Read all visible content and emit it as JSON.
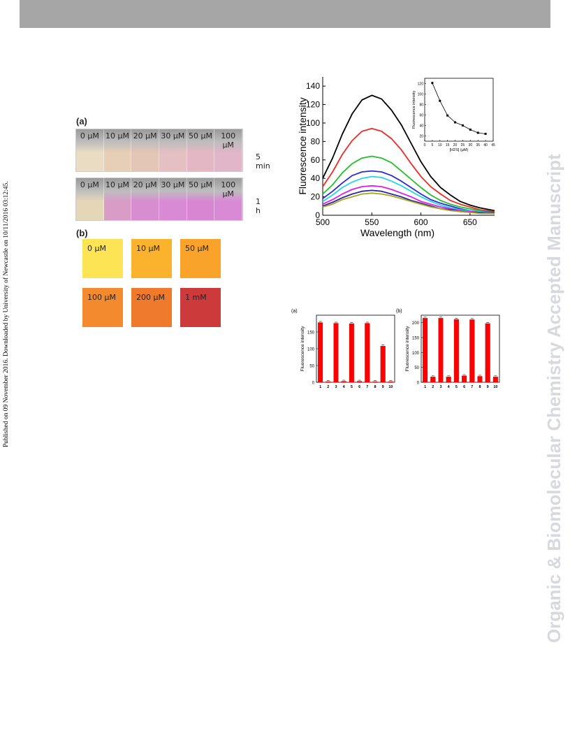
{
  "side_note": "Published on 09 November 2016. Downloaded by University of Newcastle on 10/11/2016 03:12:45.",
  "watermark": "Organic & Biomolecular Chemistry Accepted Manuscript",
  "photo_panel": {
    "label_a": "(a)",
    "label_b": "(b)",
    "rows": [
      {
        "time": "5 min",
        "vials": [
          {
            "label": "0 µM",
            "color": "#e9dcc3"
          },
          {
            "label": "10 µM",
            "color": "#e6cfb6"
          },
          {
            "label": "20 µM",
            "color": "#e3c6b5"
          },
          {
            "label": "30 µM",
            "color": "#e4c0c2"
          },
          {
            "label": "50 µM",
            "color": "#e3b8c4"
          },
          {
            "label": "100 µM",
            "color": "#e0b6c8"
          }
        ]
      },
      {
        "time": "1 h",
        "vials": [
          {
            "label": "0 µM",
            "color": "#e6d6b8"
          },
          {
            "label": "10 µM",
            "color": "#d99cc7"
          },
          {
            "label": "20 µM",
            "color": "#d68ed1"
          },
          {
            "label": "30 µM",
            "color": "#d88bd4"
          },
          {
            "label": "50 µM",
            "color": "#d886d2"
          },
          {
            "label": "100 µM",
            "color": "#d98ad5"
          }
        ]
      }
    ],
    "swatches": [
      {
        "label": "0 µM",
        "color": "#fde455"
      },
      {
        "label": "10 µM",
        "color": "#fbb22c"
      },
      {
        "label": "50 µM",
        "color": "#f9a32a"
      },
      {
        "label": "100 µM",
        "color": "#f48a2e"
      },
      {
        "label": "200 µM",
        "color": "#f07a2c"
      },
      {
        "label": "1 mM",
        "color": "#cd3a3c"
      }
    ]
  },
  "chart_data": [
    {
      "type": "line",
      "xlabel": "Wavelength (nm)",
      "ylabel": "Fluorescence intensity",
      "xlim": [
        500,
        675
      ],
      "ylim": [
        0,
        150
      ],
      "xticks": [
        "500",
        "550",
        "600",
        "650"
      ],
      "yticks": [
        "0",
        "20",
        "40",
        "60",
        "80",
        "100",
        "120",
        "140"
      ],
      "x": [
        500,
        510,
        520,
        530,
        540,
        550,
        560,
        570,
        580,
        590,
        600,
        610,
        620,
        630,
        640,
        650,
        660,
        675
      ],
      "series": [
        {
          "color": "#000000",
          "values": [
            40,
            62,
            88,
            110,
            125,
            130,
            126,
            114,
            98,
            78,
            58,
            42,
            30,
            22,
            15,
            11,
            8,
            5
          ]
        },
        {
          "color": "#ee2a24",
          "values": [
            31,
            47,
            66,
            81,
            91,
            94,
            91,
            83,
            71,
            56,
            42,
            31,
            23,
            16,
            12,
            9,
            6,
            4
          ]
        },
        {
          "color": "#22c02a",
          "values": [
            23,
            33,
            46,
            56,
            62,
            64,
            62,
            57,
            48,
            39,
            30,
            22,
            16,
            12,
            9,
            7,
            5,
            3
          ]
        },
        {
          "color": "#2a2ad8",
          "values": [
            18,
            26,
            35,
            43,
            47,
            48,
            47,
            43,
            37,
            30,
            23,
            17,
            13,
            10,
            7,
            5,
            4,
            3
          ]
        },
        {
          "color": "#23d6e6",
          "values": [
            15,
            22,
            30,
            36,
            40,
            42,
            41,
            37,
            32,
            26,
            20,
            15,
            11,
            8,
            6,
            5,
            4,
            2
          ]
        },
        {
          "color": "#e21be6",
          "values": [
            12,
            17,
            23,
            28,
            31,
            32,
            31,
            28,
            24,
            20,
            15,
            12,
            9,
            7,
            5,
            4,
            3,
            2
          ]
        },
        {
          "color": "#2a2a9a",
          "values": [
            10,
            14,
            19,
            23,
            26,
            27,
            26,
            23,
            20,
            16,
            13,
            10,
            7,
            6,
            4,
            3,
            3,
            2
          ]
        },
        {
          "color": "#a8a820",
          "values": [
            9,
            12,
            17,
            20,
            23,
            24,
            23,
            21,
            18,
            15,
            12,
            9,
            7,
            5,
            4,
            3,
            2,
            2
          ]
        }
      ]
    },
    {
      "type": "line",
      "xlabel": "[H2S] (µM)",
      "ylabel": "Fluorescence intensity",
      "xlim": [
        0,
        45
      ],
      "ylim": [
        10,
        130
      ],
      "xticks": [
        "0",
        "5",
        "10",
        "15",
        "20",
        "25",
        "30",
        "35",
        "40",
        "45"
      ],
      "yticks": [
        "20",
        "40",
        "60",
        "80",
        "100",
        "120"
      ],
      "x": [
        5,
        10,
        15,
        20,
        25,
        30,
        35,
        40
      ],
      "values": [
        121,
        87,
        59,
        46,
        40,
        32,
        26,
        24
      ]
    },
    {
      "type": "bar",
      "panel": "(a)",
      "ylabel": "Fluorescence intensity",
      "ylim": [
        0,
        200
      ],
      "yticks": [
        "0",
        "50",
        "100",
        "150"
      ],
      "categories": [
        "1",
        "2",
        "3",
        "4",
        "5",
        "6",
        "7",
        "8",
        "9",
        "10"
      ],
      "values": [
        178,
        2,
        176,
        3,
        175,
        3,
        176,
        2,
        108,
        2
      ],
      "color": "#ff0000"
    },
    {
      "type": "bar",
      "panel": "(b)",
      "ylabel": "Fluorescence intensity",
      "ylim": [
        0,
        225
      ],
      "yticks": [
        "0",
        "50",
        "100",
        "150",
        "200"
      ],
      "categories": [
        "1",
        "2",
        "3",
        "4",
        "5",
        "6",
        "7",
        "8",
        "9",
        "10"
      ],
      "values": [
        215,
        18,
        215,
        18,
        211,
        22,
        210,
        20,
        197,
        18
      ],
      "color": "#ff0000"
    }
  ]
}
